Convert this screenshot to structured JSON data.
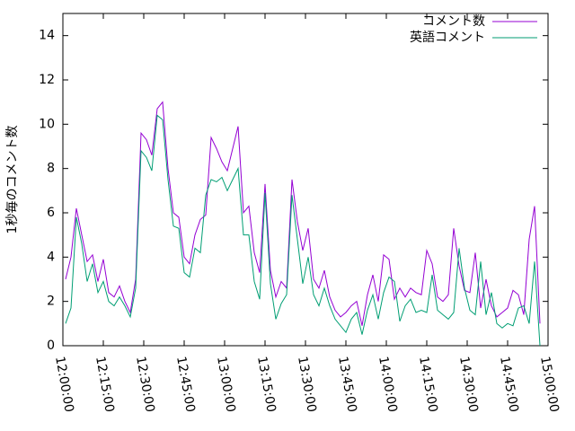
{
  "chart_data": {
    "type": "line",
    "y_label": "1秒毎のコメント数",
    "x": [
      "12:01:00",
      "12:03:00",
      "12:05:00",
      "12:07:00",
      "12:09:00",
      "12:11:00",
      "12:13:00",
      "12:15:00",
      "12:17:00",
      "12:19:00",
      "12:21:00",
      "12:23:00",
      "12:25:00",
      "12:27:00",
      "12:29:00",
      "12:31:00",
      "12:33:00",
      "12:35:00",
      "12:37:00",
      "12:39:00",
      "12:41:00",
      "12:43:00",
      "12:45:00",
      "12:47:00",
      "12:49:00",
      "12:51:00",
      "12:53:00",
      "12:55:00",
      "12:57:00",
      "12:59:00",
      "13:01:00",
      "13:03:00",
      "13:05:00",
      "13:07:00",
      "13:09:00",
      "13:11:00",
      "13:13:00",
      "13:15:00",
      "13:17:00",
      "13:19:00",
      "13:21:00",
      "13:23:00",
      "13:25:00",
      "13:27:00",
      "13:29:00",
      "13:31:00",
      "13:33:00",
      "13:35:00",
      "13:37:00",
      "13:39:00",
      "13:41:00",
      "13:43:00",
      "13:45:00",
      "13:47:00",
      "13:49:00",
      "13:51:00",
      "13:53:00",
      "13:55:00",
      "13:57:00",
      "13:59:00",
      "14:01:00",
      "14:03:00",
      "14:05:00",
      "14:07:00",
      "14:09:00",
      "14:11:00",
      "14:13:00",
      "14:15:00",
      "14:17:00",
      "14:19:00",
      "14:21:00",
      "14:23:00",
      "14:25:00",
      "14:27:00",
      "14:29:00",
      "14:31:00",
      "14:33:00",
      "14:35:00",
      "14:37:00",
      "14:39:00",
      "14:41:00",
      "14:43:00",
      "14:45:00",
      "14:47:00",
      "14:49:00",
      "14:51:00",
      "14:53:00",
      "14:55:00",
      "14:57:00"
    ],
    "series": [
      {
        "name": "コメント数",
        "color": "#9400d3",
        "values": [
          3.0,
          4.0,
          6.2,
          5.0,
          3.8,
          4.1,
          2.9,
          3.9,
          2.4,
          2.2,
          2.7,
          2.0,
          1.5,
          3.0,
          9.6,
          9.3,
          8.6,
          10.7,
          11.0,
          8.0,
          6.0,
          5.8,
          4.0,
          3.7,
          5.0,
          5.7,
          5.9,
          9.4,
          8.9,
          8.3,
          7.9,
          8.9,
          9.9,
          6.0,
          6.3,
          4.2,
          3.3,
          7.3,
          3.4,
          2.2,
          2.9,
          2.6,
          7.5,
          5.6,
          4.3,
          5.3,
          3.0,
          2.6,
          3.4,
          2.2,
          1.6,
          1.3,
          1.5,
          1.8,
          2.0,
          0.9,
          2.3,
          3.2,
          2.0,
          4.1,
          3.9,
          2.1,
          2.6,
          2.2,
          2.6,
          2.4,
          2.3,
          4.3,
          3.7,
          2.2,
          2.0,
          2.3,
          5.3,
          3.6,
          2.5,
          2.4,
          4.2,
          1.7,
          3.0,
          1.8,
          1.3,
          1.5,
          1.7,
          2.5,
          2.3,
          1.4,
          4.8,
          6.3,
          1.0
        ]
      },
      {
        "name": "英語コメント",
        "color": "#009e73",
        "values": [
          1.0,
          1.7,
          5.8,
          4.6,
          2.9,
          3.7,
          2.4,
          2.9,
          2.0,
          1.8,
          2.2,
          1.8,
          1.3,
          2.6,
          8.8,
          8.5,
          7.9,
          10.4,
          10.2,
          7.5,
          5.4,
          5.3,
          3.3,
          3.1,
          4.4,
          4.2,
          6.8,
          7.5,
          7.4,
          7.6,
          7.0,
          7.5,
          8.0,
          5.0,
          5.0,
          2.9,
          2.1,
          6.9,
          2.8,
          1.2,
          1.9,
          2.3,
          6.8,
          4.8,
          2.8,
          4.0,
          2.3,
          1.8,
          2.6,
          1.8,
          1.2,
          0.9,
          0.6,
          1.2,
          1.5,
          0.5,
          1.6,
          2.3,
          1.2,
          2.4,
          3.1,
          2.9,
          1.1,
          1.8,
          2.1,
          1.5,
          1.6,
          1.5,
          3.2,
          1.6,
          1.4,
          1.2,
          1.5,
          4.4,
          2.6,
          1.6,
          1.4,
          3.8,
          1.4,
          2.4,
          1.0,
          0.8,
          1.0,
          0.9,
          1.7,
          1.8,
          1.0,
          3.8,
          0.0
        ]
      }
    ],
    "xlim": [
      "12:00:00",
      "15:00:00"
    ],
    "xticks": [
      "12:00:00",
      "12:15:00",
      "12:30:00",
      "12:45:00",
      "13:00:00",
      "13:15:00",
      "13:30:00",
      "13:45:00",
      "14:00:00",
      "14:15:00",
      "14:30:00",
      "14:45:00",
      "15:00:00"
    ],
    "ylim": [
      0,
      15
    ],
    "yticks": [
      0,
      2,
      4,
      6,
      8,
      10,
      12,
      14
    ],
    "legend": "top-right",
    "grid": false
  }
}
